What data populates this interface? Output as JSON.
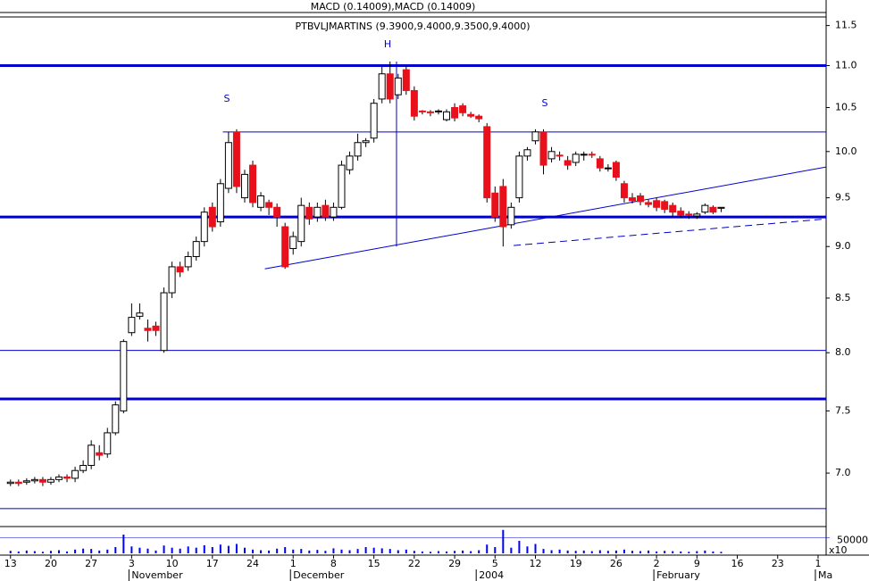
{
  "chart_data": {
    "type": "candlestick",
    "title": "PTBVLJMARTINS (9.3900,9.4000,9.3500,9.4000)",
    "indicator_title": "MACD (0.14009),MACD (0.14009)",
    "log_scale": true,
    "up_color": "#ffffff",
    "down_color": "#e8101a",
    "line_color": "#0000cc",
    "x": [
      0,
      1,
      2,
      3,
      4,
      5,
      6,
      7,
      8,
      9,
      10,
      11,
      12,
      13,
      14,
      15,
      16,
      17,
      18,
      19,
      20,
      21,
      22,
      23,
      24,
      25,
      26,
      27,
      28,
      29,
      30,
      31,
      32,
      33,
      34,
      35,
      36,
      37,
      38,
      39,
      40,
      41,
      42,
      43,
      44,
      45,
      46,
      47,
      48,
      49,
      50,
      51,
      52,
      53,
      54,
      55,
      56,
      57,
      58,
      59,
      60,
      61,
      62,
      63,
      64,
      65,
      66,
      67,
      68,
      69,
      70,
      71,
      72,
      73,
      74,
      75,
      76,
      77,
      78,
      79,
      80,
      81,
      82,
      83,
      84,
      85,
      86,
      87,
      88
    ],
    "open": [
      6.92,
      6.93,
      6.93,
      6.94,
      6.95,
      6.93,
      6.95,
      6.97,
      6.96,
      7.02,
      7.06,
      7.16,
      7.15,
      7.32,
      7.5,
      8.18,
      8.33,
      8.22,
      8.24,
      8.02,
      8.55,
      8.8,
      8.8,
      8.9,
      9.05,
      9.4,
      9.25,
      9.6,
      10.22,
      9.5,
      9.85,
      9.4,
      9.45,
      9.4,
      9.2,
      8.98,
      9.05,
      9.4,
      9.3,
      9.42,
      9.3,
      9.4,
      9.8,
      9.95,
      10.1,
      10.15,
      10.6,
      10.9,
      10.65,
      10.95,
      10.7,
      10.46,
      10.45,
      10.45,
      10.36,
      10.5,
      10.52,
      10.42,
      10.4,
      10.28,
      9.55,
      9.62,
      9.22,
      9.5,
      9.95,
      10.12,
      10.22,
      9.92,
      9.96,
      9.9,
      9.88,
      9.96,
      9.97,
      9.92,
      9.82,
      9.88,
      9.65,
      9.5,
      9.52,
      9.45,
      9.47,
      9.46,
      9.42,
      9.36,
      9.33,
      9.31,
      9.35,
      9.4,
      9.39
    ],
    "high": [
      6.95,
      6.95,
      6.96,
      6.97,
      6.97,
      6.97,
      6.99,
      6.99,
      7.05,
      7.1,
      7.26,
      7.22,
      7.36,
      7.58,
      8.12,
      8.45,
      8.45,
      8.3,
      8.28,
      8.6,
      8.85,
      8.85,
      8.95,
      9.1,
      9.4,
      9.45,
      9.7,
      10.22,
      10.25,
      9.8,
      9.9,
      9.56,
      9.48,
      9.44,
      9.24,
      9.15,
      9.5,
      9.45,
      9.45,
      9.48,
      9.45,
      9.9,
      10.0,
      10.2,
      10.15,
      10.6,
      11.0,
      11.05,
      10.9,
      11.0,
      10.75,
      10.47,
      10.47,
      10.48,
      10.48,
      10.55,
      10.55,
      10.45,
      10.42,
      10.32,
      9.62,
      9.7,
      9.45,
      10.0,
      10.05,
      10.25,
      10.25,
      10.05,
      10.0,
      9.95,
      10.0,
      10.0,
      10.0,
      9.95,
      9.86,
      9.9,
      9.68,
      9.55,
      9.55,
      9.48,
      9.5,
      9.48,
      9.45,
      9.4,
      9.36,
      9.35,
      9.44,
      9.42,
      9.4
    ],
    "low": [
      6.9,
      6.9,
      6.91,
      6.92,
      6.9,
      6.91,
      6.93,
      6.93,
      6.93,
      7.0,
      7.03,
      7.1,
      7.12,
      7.3,
      7.48,
      8.15,
      8.3,
      8.1,
      8.15,
      8.0,
      8.5,
      8.7,
      8.76,
      8.86,
      9.0,
      9.15,
      9.2,
      9.55,
      9.55,
      9.45,
      9.4,
      9.36,
      9.32,
      9.2,
      8.78,
      8.92,
      9.0,
      9.22,
      9.25,
      9.26,
      9.26,
      9.38,
      9.75,
      9.9,
      10.05,
      10.1,
      10.55,
      10.55,
      10.6,
      10.65,
      10.35,
      10.42,
      10.4,
      10.42,
      10.34,
      10.34,
      10.4,
      10.38,
      10.33,
      9.45,
      9.25,
      9.0,
      9.18,
      9.45,
      9.9,
      10.08,
      9.75,
      9.88,
      9.9,
      9.8,
      9.84,
      9.9,
      9.93,
      9.78,
      9.78,
      9.68,
      9.45,
      9.44,
      9.42,
      9.4,
      9.36,
      9.34,
      9.3,
      9.29,
      9.28,
      9.28,
      9.33,
      9.33,
      9.35
    ],
    "close": [
      6.93,
      6.92,
      6.94,
      6.95,
      6.93,
      6.95,
      6.97,
      6.96,
      7.02,
      7.06,
      7.22,
      7.14,
      7.32,
      7.55,
      8.1,
      8.32,
      8.36,
      8.2,
      8.2,
      8.55,
      8.8,
      8.75,
      8.9,
      9.05,
      9.35,
      9.2,
      9.65,
      10.1,
      9.62,
      9.75,
      9.45,
      9.52,
      9.4,
      9.3,
      8.8,
      9.1,
      9.42,
      9.28,
      9.4,
      9.3,
      9.4,
      9.85,
      9.95,
      10.1,
      10.12,
      10.55,
      10.9,
      10.6,
      10.85,
      10.7,
      10.4,
      10.45,
      10.44,
      10.46,
      10.45,
      10.38,
      10.44,
      10.4,
      10.37,
      9.5,
      9.3,
      9.2,
      9.4,
      9.95,
      10.02,
      10.22,
      9.85,
      10.0,
      9.95,
      9.85,
      9.97,
      9.97,
      9.96,
      9.82,
      9.82,
      9.72,
      9.5,
      9.47,
      9.46,
      9.43,
      9.4,
      9.38,
      9.35,
      9.32,
      9.32,
      9.33,
      9.42,
      9.35,
      9.4
    ],
    "xlim": [
      -1.3,
      101
    ],
    "xticks": [
      {
        "value": 0,
        "label": "13"
      },
      {
        "value": 5,
        "label": "20"
      },
      {
        "value": 10,
        "label": "27"
      },
      {
        "value": 15,
        "label": "3"
      },
      {
        "value": 20,
        "label": "10"
      },
      {
        "value": 25,
        "label": "17"
      },
      {
        "value": 30,
        "label": "24"
      },
      {
        "value": 35,
        "label": "1"
      },
      {
        "value": 40,
        "label": "8"
      },
      {
        "value": 45,
        "label": "15"
      },
      {
        "value": 50,
        "label": "22"
      },
      {
        "value": 55,
        "label": "29"
      },
      {
        "value": 60,
        "label": "5"
      },
      {
        "value": 65,
        "label": "12"
      },
      {
        "value": 70,
        "label": "19"
      },
      {
        "value": 75,
        "label": "26"
      },
      {
        "value": 80,
        "label": "2"
      },
      {
        "value": 85,
        "label": "9"
      },
      {
        "value": 90,
        "label": "16"
      },
      {
        "value": 95,
        "label": "23"
      },
      {
        "value": 100,
        "label": "1"
      }
    ],
    "month_labels": [
      {
        "value": 15,
        "label": "November"
      },
      {
        "value": 35,
        "label": "December"
      },
      {
        "value": 58,
        "label": "2004"
      },
      {
        "value": 80,
        "label": "February"
      },
      {
        "value": 100,
        "label": "Ma"
      }
    ],
    "ylim": [
      6.61,
      11.61
    ],
    "yticks": [
      11.5,
      {
        "value": 11,
        "label": "11.0"
      },
      10.5,
      {
        "value": 10,
        "label": "10.0"
      },
      9.5,
      {
        "value": 9,
        "label": "9.0"
      },
      8.5,
      {
        "value": 8,
        "label": "8.0"
      },
      7.5,
      {
        "value": 7,
        "label": "7.0"
      }
    ],
    "thick_levels": [
      11.0,
      9.3,
      7.6
    ],
    "thin_levels": [
      8.02,
      6.73
    ],
    "partial_levels": [
      {
        "x": 26.3,
        "y": 10.22
      }
    ],
    "trendlines": [
      {
        "x": [
          31.5,
          101
        ],
        "y": [
          8.78,
          9.83
        ],
        "dashed": false
      },
      {
        "x": [
          62.3,
          101
        ],
        "y": [
          9.01,
          9.28
        ],
        "dashed": true
      },
      {
        "x": [
          47.8,
          47.8
        ],
        "y": [
          11.05,
          9.0
        ],
        "dashed": false
      }
    ],
    "annotations": [
      "S",
      "H",
      "S"
    ],
    "volume": {
      "values": [
        8000,
        6000,
        9000,
        7000,
        5000,
        8000,
        10000,
        6000,
        12000,
        15000,
        14000,
        9000,
        12000,
        20000,
        60000,
        22000,
        18000,
        15000,
        9000,
        25000,
        18000,
        15000,
        22000,
        18000,
        26000,
        20000,
        28000,
        24000,
        30000,
        18000,
        12000,
        10000,
        9000,
        15000,
        20000,
        12000,
        14000,
        9000,
        11000,
        8000,
        16000,
        12000,
        10000,
        14000,
        20000,
        18000,
        16000,
        14000,
        10000,
        12000,
        8000,
        6000,
        5000,
        7000,
        6000,
        8000,
        9000,
        7000,
        10000,
        28000,
        20000,
        75000,
        18000,
        40000,
        22000,
        30000,
        14000,
        10000,
        12000,
        9000,
        8000,
        9000,
        7000,
        10000,
        8000,
        9000,
        12000,
        8000,
        7000,
        9000,
        6000,
        8000,
        7000,
        6000,
        5000,
        7000,
        9000,
        6000,
        5000
      ],
      "color": "#0000ff",
      "ylim": [
        0,
        80000
      ],
      "yticks": [
        50000
      ],
      "multiplier": "x10"
    }
  }
}
